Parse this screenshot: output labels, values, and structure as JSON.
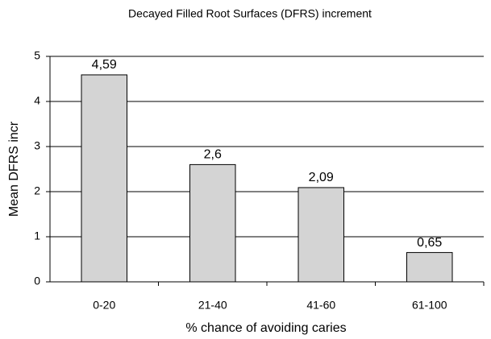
{
  "chart_data": {
    "type": "bar",
    "title": "Decayed Filled Root Surfaces (DFRS) increment",
    "categories": [
      "0-20",
      "21-40",
      "41-60",
      "61-100"
    ],
    "values": [
      4.59,
      2.6,
      2.09,
      0.65
    ],
    "value_labels": [
      "4,59",
      "2,6",
      "2,09",
      "0,65"
    ],
    "color": "#d4d4d4",
    "ylim": [
      0,
      5
    ],
    "yticks": [
      0,
      1,
      2,
      3,
      4,
      5
    ],
    "grid": true,
    "xlabel": "% chance of avoiding caries",
    "ylabel": "Mean DFRS incr"
  }
}
